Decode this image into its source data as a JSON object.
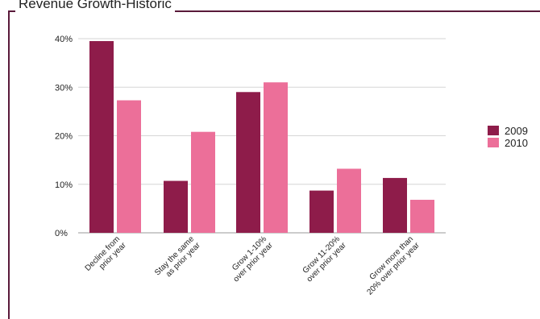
{
  "title": "Revenue Growth-Historic",
  "chart_data": {
    "type": "bar",
    "title": "Revenue Growth-Historic",
    "categories": [
      [
        "Decline from",
        "prior year"
      ],
      [
        "Stay the same",
        "as prior year"
      ],
      [
        "Grow 1-10%",
        "over prior year"
      ],
      [
        "Grow 11-20%",
        "over prior year"
      ],
      [
        "Grow more than",
        "20% over prior year"
      ]
    ],
    "series": [
      {
        "name": "2009",
        "color": "#8e1c4a",
        "values": [
          39.5,
          10.7,
          29.0,
          8.7,
          11.3
        ]
      },
      {
        "name": "2010",
        "color": "#ec6f99",
        "values": [
          27.3,
          20.8,
          31.0,
          13.2,
          6.8
        ]
      }
    ],
    "y_ticks": [
      "0%",
      "10%",
      "20%",
      "30%",
      "40%"
    ],
    "ylim": [
      0,
      40
    ],
    "grid": true,
    "legend_position": "right"
  }
}
